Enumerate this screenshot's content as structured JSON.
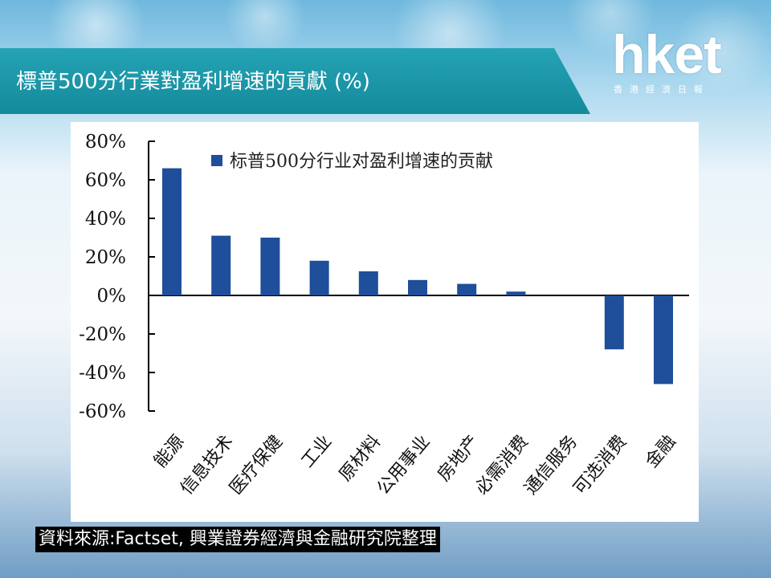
{
  "slide": {
    "title": "標普500分行業對盈利增速的貢獻 (%)",
    "logo_main": "hket",
    "logo_sub": "香港經濟日報",
    "source": "資料來源:Factset, 興業證券經濟與金融研究院整理",
    "background_color": "#eaf4fa",
    "banner_color": "#1c97a9"
  },
  "chart_data": {
    "type": "bar",
    "legend": "标普500分行业对盈利增速的贡献",
    "legend_position": "top",
    "categories": [
      "能源",
      "信息技术",
      "医疗保健",
      "工业",
      "原材料",
      "公用事业",
      "房地产",
      "必需消费",
      "通信服务",
      "可选消费",
      "金融"
    ],
    "values": [
      66,
      31,
      30,
      18,
      12.5,
      8,
      6,
      2,
      0,
      -28,
      -46
    ],
    "ylim": [
      -60,
      80
    ],
    "yticks": [
      80,
      60,
      40,
      20,
      0,
      -20,
      -40,
      -60
    ],
    "ytick_labels": [
      "80%",
      "60%",
      "40%",
      "20%",
      "0%",
      "-20%",
      "-40%",
      "-60%"
    ],
    "bar_color": "#1f4e9a",
    "grid": false
  }
}
